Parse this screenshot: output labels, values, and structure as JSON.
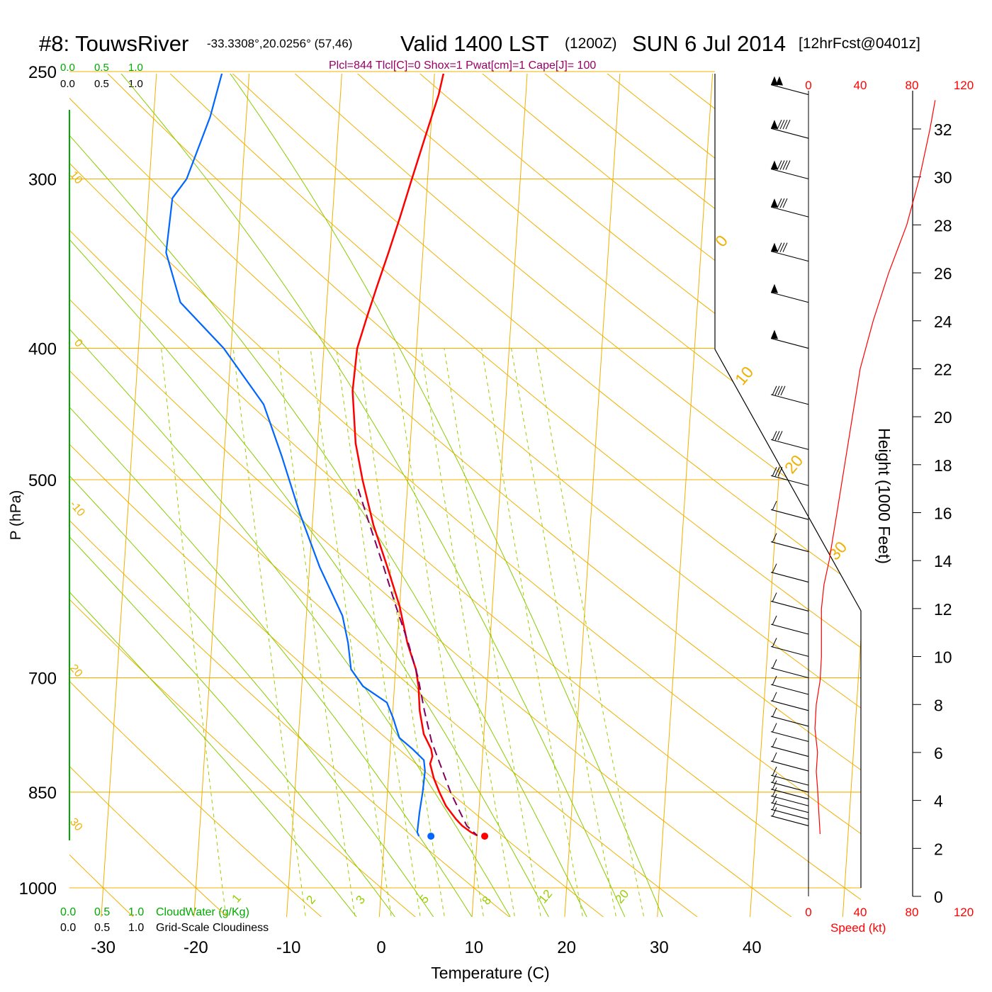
{
  "header": {
    "station": "#8: TouwsRiver",
    "coords": "-33.3308°,20.0256° (57,46)",
    "valid": "Valid 1400 LST",
    "zulu": "(1200Z)",
    "date": "SUN 6 Jul 2014",
    "forecast": "[12hrFcst@0401z]",
    "indices": "Plcl=844 Tlcl[C]=0 Shox=1 Pwat[cm]=1 Cape[J]= 100"
  },
  "colors": {
    "temperature": "#ff0000",
    "dewpoint": "#0066ff",
    "parcel": "#800060",
    "isotherm": "#f0b000",
    "mixing_ratio": "#99cc00",
    "moist_adiabat": "#88cc00",
    "cloudwater": "#00aa00",
    "speed": "#ff0000",
    "indices": "#990066"
  },
  "labels": {
    "ylabel": "P (hPa)",
    "xlabel": "Temperature (C)",
    "height_label": "Height (1000 Feet)",
    "cloudwater_label": "CloudWater (g/Kg)",
    "cloudiness_label": "Grid-Scale Cloudiness",
    "speed_label": "Speed (kt)",
    "scale_ticks": [
      "0.0",
      "0.5",
      "1.0"
    ]
  },
  "chart_data": {
    "type": "line",
    "title": "#8: TouwsRiver",
    "xlabel": "Temperature (C)",
    "ylabel": "P (hPa)",
    "y_scale": "log",
    "x_ticks": [
      -30,
      -20,
      -10,
      0,
      10,
      20,
      30,
      40
    ],
    "y_ticks": [
      250,
      300,
      400,
      500,
      700,
      850,
      1000
    ],
    "xlim": [
      -34,
      36
    ],
    "ylim": [
      1000,
      250
    ],
    "isotherm_labels": [
      30,
      20,
      10,
      0,
      -10,
      -20,
      -30
    ],
    "mixing_ratio_labels": [
      "1",
      "2",
      "3",
      "5",
      "8",
      "12",
      "20"
    ],
    "series": [
      {
        "name": "Temperature",
        "points": [
          [
            250,
            1.0
          ],
          [
            260,
            0.6
          ],
          [
            280,
            -0.6
          ],
          [
            300,
            -1.7
          ],
          [
            320,
            -2.7
          ],
          [
            340,
            -3.7
          ],
          [
            360,
            -4.7
          ],
          [
            380,
            -5.6
          ],
          [
            400,
            -6.4
          ],
          [
            430,
            -6.6
          ],
          [
            470,
            -5.9
          ],
          [
            500,
            -4.9
          ],
          [
            540,
            -3.4
          ],
          [
            580,
            -1.6
          ],
          [
            620,
            0.0
          ],
          [
            660,
            1.1
          ],
          [
            690,
            2.2
          ],
          [
            710,
            2.6
          ],
          [
            740,
            2.9
          ],
          [
            770,
            3.5
          ],
          [
            790,
            4.4
          ],
          [
            800,
            4.6
          ],
          [
            810,
            4.4
          ],
          [
            830,
            4.9
          ],
          [
            850,
            5.6
          ],
          [
            870,
            6.4
          ],
          [
            890,
            7.6
          ],
          [
            900,
            8.3
          ],
          [
            910,
            9.3
          ],
          [
            915,
            10.0
          ]
        ]
      },
      {
        "name": "Dewpoint",
        "points": [
          [
            250,
            -22.9
          ],
          [
            270,
            -23.9
          ],
          [
            300,
            -26.0
          ],
          [
            310,
            -27.4
          ],
          [
            340,
            -27.7
          ],
          [
            370,
            -25.8
          ],
          [
            400,
            -20.8
          ],
          [
            440,
            -16.1
          ],
          [
            480,
            -13.8
          ],
          [
            530,
            -11.4
          ],
          [
            580,
            -8.9
          ],
          [
            630,
            -6.1
          ],
          [
            660,
            -5.3
          ],
          [
            690,
            -4.8
          ],
          [
            710,
            -3.4
          ],
          [
            730,
            -0.7
          ],
          [
            750,
            0.1
          ],
          [
            775,
            0.9
          ],
          [
            790,
            2.4
          ],
          [
            805,
            3.7
          ],
          [
            820,
            3.9
          ],
          [
            850,
            3.8
          ],
          [
            880,
            3.6
          ],
          [
            910,
            3.5
          ],
          [
            916,
            3.7
          ]
        ]
      },
      {
        "name": "Parcel",
        "points": [
          [
            508,
            -5.3
          ],
          [
            540,
            -3.8
          ],
          [
            580,
            -2.0
          ],
          [
            620,
            -0.4
          ],
          [
            660,
            1.2
          ],
          [
            700,
            2.5
          ],
          [
            740,
            3.4
          ],
          [
            780,
            4.4
          ],
          [
            820,
            5.8
          ],
          [
            850,
            6.8
          ],
          [
            880,
            8.0
          ],
          [
            900,
            8.8
          ],
          [
            915,
            10.0
          ]
        ]
      }
    ],
    "surface_markers": {
      "temperature": 10.8,
      "dewpoint": 5.0,
      "pressure": 916
    },
    "height_axis": {
      "label": "Height (1000 Feet)",
      "ticks": [
        0,
        2,
        4,
        6,
        8,
        10,
        12,
        14,
        16,
        18,
        20,
        22,
        24,
        26,
        28,
        30,
        32
      ]
    },
    "wind_speed": {
      "label": "Speed (kt)",
      "ticks": [
        0,
        40,
        80,
        120
      ],
      "profile_kt": [
        [
          2.6,
          9
        ],
        [
          3.5,
          8
        ],
        [
          4.5,
          7
        ],
        [
          5.2,
          6
        ],
        [
          6.0,
          7
        ],
        [
          7.0,
          5
        ],
        [
          8.0,
          6
        ],
        [
          9.0,
          9
        ],
        [
          10.0,
          10
        ],
        [
          12.0,
          10
        ],
        [
          13.0,
          12
        ],
        [
          14.0,
          16
        ],
        [
          16.0,
          22
        ],
        [
          18.0,
          28
        ],
        [
          20.0,
          34
        ],
        [
          22.0,
          40
        ],
        [
          24.0,
          50
        ],
        [
          26.0,
          62
        ],
        [
          28.0,
          76
        ],
        [
          30.0,
          86
        ],
        [
          32.0,
          94
        ],
        [
          33.2,
          98
        ]
      ]
    },
    "wind_barbs_hPa": [
      {
        "p": 260,
        "flags": 2,
        "full": 0
      },
      {
        "p": 280,
        "flags": 1,
        "full": 4
      },
      {
        "p": 300,
        "flags": 1,
        "full": 4
      },
      {
        "p": 320,
        "flags": 1,
        "full": 3
      },
      {
        "p": 345,
        "flags": 1,
        "full": 3
      },
      {
        "p": 370,
        "flags": 1,
        "full": 0
      },
      {
        "p": 400,
        "flags": 1,
        "full": 0
      },
      {
        "p": 440,
        "flags": 0,
        "full": 4
      },
      {
        "p": 475,
        "flags": 0,
        "full": 3
      },
      {
        "p": 505,
        "flags": 0,
        "full": 3
      },
      {
        "p": 535,
        "flags": 0,
        "full": 1
      },
      {
        "p": 565,
        "flags": 0,
        "full": 1
      },
      {
        "p": 595,
        "flags": 0,
        "full": 1
      },
      {
        "p": 625,
        "flags": 0,
        "full": 1
      },
      {
        "p": 650,
        "flags": 0,
        "full": 1
      },
      {
        "p": 675,
        "flags": 0,
        "full": 1
      },
      {
        "p": 700,
        "flags": 0,
        "full": 1
      },
      {
        "p": 720,
        "flags": 0,
        "full": 1
      },
      {
        "p": 740,
        "flags": 0,
        "full": 1
      },
      {
        "p": 760,
        "flags": 0,
        "full": 1
      },
      {
        "p": 780,
        "flags": 0,
        "full": 1
      },
      {
        "p": 800,
        "flags": 0,
        "full": 1
      },
      {
        "p": 820,
        "flags": 0,
        "full": 1
      },
      {
        "p": 840,
        "flags": 0,
        "full": 1
      },
      {
        "p": 850,
        "flags": 0,
        "full": 1
      },
      {
        "p": 860,
        "flags": 0,
        "full": 1
      },
      {
        "p": 870,
        "flags": 0,
        "full": 1
      },
      {
        "p": 880,
        "flags": 0,
        "full": 1
      },
      {
        "p": 890,
        "flags": 0,
        "full": 1
      },
      {
        "p": 900,
        "flags": 0,
        "full": 1
      }
    ]
  }
}
